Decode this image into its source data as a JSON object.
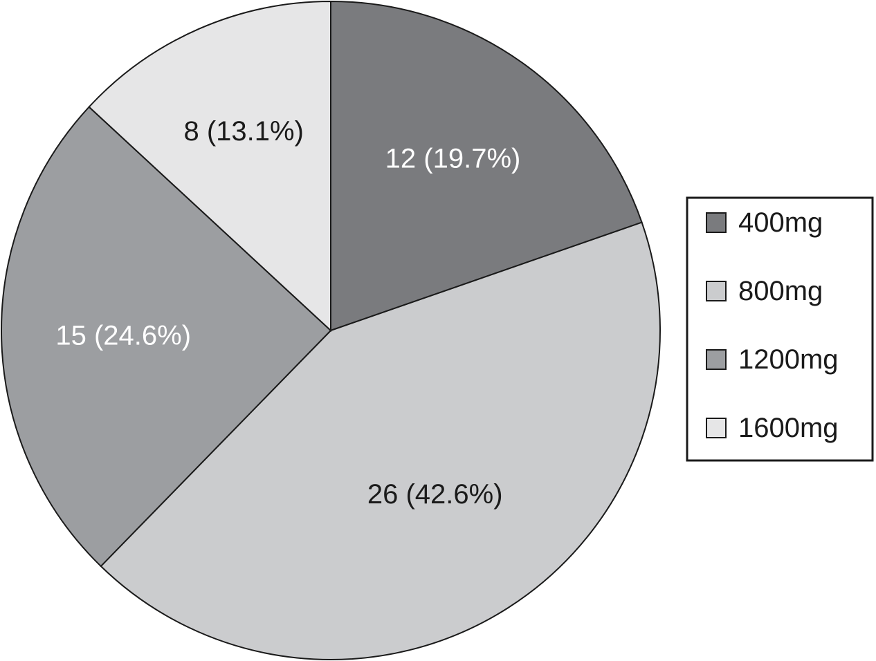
{
  "chart_data": {
    "type": "pie",
    "title": "",
    "slices": [
      {
        "name": "400mg",
        "value": 12,
        "percent": 19.7,
        "label": "12 (19.7%)",
        "color": "#7a7b7e",
        "label_color": "#ffffff"
      },
      {
        "name": "800mg",
        "value": 26,
        "percent": 42.6,
        "label": "26 (42.6%)",
        "color": "#cbccce",
        "label_color": "#1a1a1a"
      },
      {
        "name": "1200mg",
        "value": 15,
        "percent": 24.6,
        "label": "15 (24.6%)",
        "color": "#9c9ea1",
        "label_color": "#ffffff"
      },
      {
        "name": "1600mg",
        "value": 8,
        "percent": 13.1,
        "label": "8 (13.1%)",
        "color": "#e6e6e7",
        "label_color": "#1a1a1a"
      }
    ],
    "start_angle": "12 o'clock",
    "direction": "clockwise",
    "legend_position": "right",
    "legend": [
      "400mg",
      "800mg",
      "1200mg",
      "1600mg"
    ]
  }
}
